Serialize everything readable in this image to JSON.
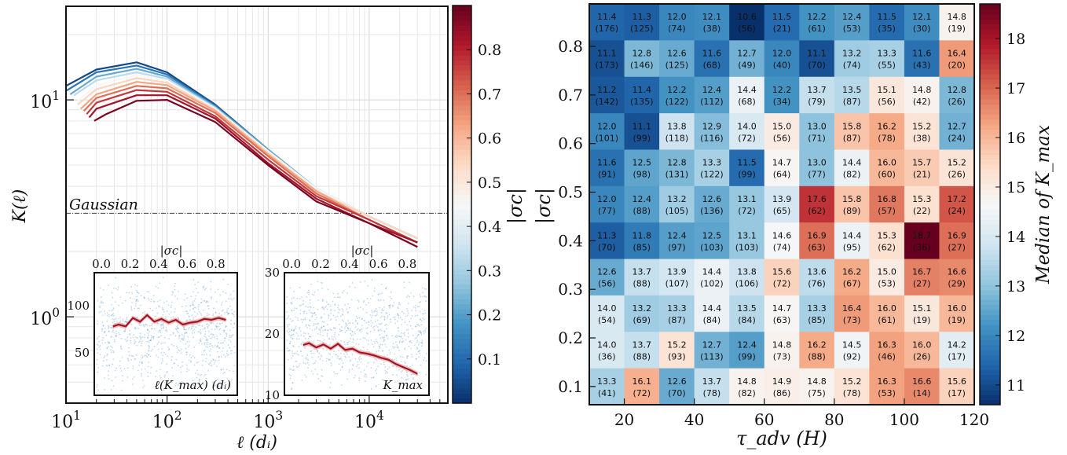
{
  "colors": {
    "cmap": [
      "#08306b",
      "#2166ac",
      "#4393c3",
      "#92c5de",
      "#d1e5f0",
      "#f7f7f7",
      "#fddbc7",
      "#f4a582",
      "#d6604d",
      "#b2182b",
      "#67001f"
    ]
  },
  "chart_data": [
    {
      "type": "line",
      "ylabel": "K(ℓ)",
      "xlabel": "ℓ (dᵢ)",
      "x_scale": "log",
      "y_scale": "log",
      "xlim": [
        10,
        60000
      ],
      "ylim": [
        0.4,
        27
      ],
      "x_ticks": [
        {
          "v": 10,
          "b": "10",
          "e": "1"
        },
        {
          "v": 100,
          "b": "10",
          "e": "2"
        },
        {
          "v": 1000,
          "b": "10",
          "e": "3"
        },
        {
          "v": 10000,
          "b": "10",
          "e": "4"
        }
      ],
      "y_ticks": [
        {
          "v": 1,
          "b": "10",
          "e": "0"
        },
        {
          "v": 10,
          "b": "10",
          "e": "1"
        }
      ],
      "reference_line": {
        "label": "Gaussian",
        "y": 3
      },
      "grid": true,
      "colorbar": {
        "label": "|σc|",
        "ticks": [
          "0.1",
          "0.2",
          "0.3",
          "0.4",
          "0.5",
          "0.6",
          "0.7",
          "0.8"
        ],
        "range": [
          0.0,
          0.9
        ]
      },
      "series": [
        {
          "sigma": 0.04,
          "x": [
            10,
            20,
            50,
            100,
            300,
            1000,
            3000,
            10000,
            30000
          ],
          "y": [
            11.6,
            13.8,
            14.9,
            13.4,
            9.5,
            5.9,
            3.9,
            2.9,
            2.3
          ]
        },
        {
          "sigma": 0.12,
          "x": [
            10,
            20,
            50,
            100,
            300,
            1000,
            3000,
            10000,
            30000
          ],
          "y": [
            11.0,
            13.4,
            14.4,
            13.1,
            9.4,
            5.9,
            3.9,
            2.9,
            2.3
          ]
        },
        {
          "sigma": 0.22,
          "x": [
            11,
            20,
            50,
            100,
            300,
            1000,
            3000,
            10000,
            30000
          ],
          "y": [
            10.6,
            12.8,
            13.9,
            12.8,
            9.3,
            5.9,
            3.9,
            2.9,
            2.3
          ]
        },
        {
          "sigma": 0.33,
          "x": [
            12,
            20,
            50,
            100,
            300,
            1000,
            3000,
            10000,
            30000
          ],
          "y": [
            10.5,
            12.3,
            13.4,
            12.5,
            9.2,
            5.8,
            3.9,
            2.9,
            2.3
          ]
        },
        {
          "sigma": 0.45,
          "x": [
            13,
            20,
            50,
            100,
            300,
            1000,
            3000,
            10000,
            30000
          ],
          "y": [
            9.9,
            11.7,
            13.0,
            12.3,
            9.1,
            5.8,
            3.9,
            2.9,
            2.3
          ]
        },
        {
          "sigma": 0.55,
          "x": [
            13,
            20,
            50,
            100,
            300,
            1000,
            3000,
            10000,
            30000
          ],
          "y": [
            9.5,
            11.2,
            12.6,
            12.0,
            9.0,
            5.7,
            3.8,
            2.9,
            2.3
          ]
        },
        {
          "sigma": 0.63,
          "x": [
            14,
            20,
            50,
            100,
            300,
            1000,
            3000,
            10000,
            30000
          ],
          "y": [
            9.1,
            10.6,
            12.1,
            11.7,
            8.9,
            5.6,
            3.8,
            2.8,
            2.2
          ]
        },
        {
          "sigma": 0.7,
          "x": [
            15,
            20,
            50,
            100,
            300,
            1000,
            3000,
            10000,
            30000
          ],
          "y": [
            8.9,
            10.2,
            11.6,
            11.3,
            8.7,
            5.5,
            3.7,
            2.8,
            2.2
          ]
        },
        {
          "sigma": 0.77,
          "x": [
            16,
            20,
            50,
            100,
            300,
            1000,
            3000,
            10000,
            30000
          ],
          "y": [
            8.6,
            9.7,
            11.1,
            10.9,
            8.4,
            5.3,
            3.6,
            2.8,
            2.2
          ]
        },
        {
          "sigma": 0.83,
          "x": [
            17,
            20,
            50,
            100,
            300,
            1000,
            3000,
            10000,
            30000
          ],
          "y": [
            8.3,
            9.1,
            10.5,
            10.5,
            8.2,
            5.1,
            3.5,
            2.7,
            2.2
          ]
        },
        {
          "sigma": 0.88,
          "x": [
            19,
            25,
            50,
            100,
            300,
            1000,
            3000,
            10000,
            30000
          ],
          "y": [
            8.0,
            8.6,
            9.9,
            10.0,
            7.9,
            5.0,
            3.4,
            2.7,
            2.1
          ]
        }
      ],
      "insets": [
        {
          "xlabel": "|σc|",
          "xlim": [
            -0.05,
            0.95
          ],
          "x_ticks": [
            "0.0",
            "0.2",
            "0.4",
            "0.6",
            "0.8"
          ],
          "ylim": [
            5,
            135
          ],
          "y_ticks": [
            {
              "v": 50,
              "t": "50"
            },
            {
              "v": 100,
              "t": "100"
            }
          ],
          "annotation": "ℓ(K_max) (dᵢ)",
          "line": {
            "x": [
              0.08,
              0.12,
              0.17,
              0.22,
              0.27,
              0.32,
              0.37,
              0.42,
              0.47,
              0.52,
              0.57,
              0.62,
              0.67,
              0.72,
              0.77,
              0.82,
              0.87
            ],
            "y": [
              78,
              80,
              78,
              87,
              83,
              90,
              83,
              86,
              82,
              85,
              80,
              82,
              83,
              86,
              85,
              87,
              85
            ]
          }
        },
        {
          "xlabel": "|σc|",
          "xlim": [
            -0.05,
            0.95
          ],
          "x_ticks": [
            "0.0",
            "0.2",
            "0.4",
            "0.6",
            "0.8"
          ],
          "ylim": [
            10,
            30
          ],
          "y_ticks": [
            {
              "v": 10,
              "t": "10"
            },
            {
              "v": 20,
              "t": "20"
            },
            {
              "v": 30,
              "t": "30"
            }
          ],
          "annotation": "K_max",
          "line": {
            "x": [
              0.08,
              0.12,
              0.17,
              0.22,
              0.27,
              0.32,
              0.37,
              0.42,
              0.47,
              0.52,
              0.57,
              0.62,
              0.67,
              0.72,
              0.77,
              0.82,
              0.87
            ],
            "y": [
              18.2,
              18.5,
              17.8,
              18.3,
              17.6,
              18.4,
              17.4,
              17.6,
              17.0,
              16.8,
              16.5,
              16.1,
              15.8,
              15.1,
              14.6,
              14.1,
              13.5
            ]
          }
        }
      ]
    },
    {
      "type": "heatmap",
      "xlabel": "τ_adv (H)",
      "ylabel": "|σc|",
      "x": [
        15,
        25,
        35,
        45,
        55,
        65,
        75,
        85,
        95,
        105,
        115
      ],
      "x_ticks": [
        20,
        40,
        60,
        80,
        100,
        120
      ],
      "y": [
        0.85,
        0.775,
        0.7,
        0.625,
        0.55,
        0.475,
        0.4,
        0.325,
        0.25,
        0.175,
        0.1
      ],
      "y_ticks": [
        "0.8",
        "0.7",
        "0.6",
        "0.5",
        "0.4",
        "0.3",
        "0.2",
        "0.1"
      ],
      "colorbar": {
        "label": "Median of K_max",
        "ticks": [
          11,
          12,
          13,
          14,
          15,
          16,
          17,
          18
        ],
        "range": [
          10.6,
          18.7
        ]
      },
      "values": [
        [
          11.4,
          11.3,
          12.0,
          12.1,
          10.6,
          11.5,
          12.2,
          12.4,
          11.5,
          12.1,
          14.8
        ],
        [
          11.1,
          12.8,
          12.6,
          11.6,
          12.7,
          12.0,
          11.1,
          13.2,
          13.3,
          11.6,
          16.4
        ],
        [
          11.2,
          11.4,
          12.2,
          12.4,
          14.4,
          12.2,
          13.7,
          13.5,
          15.1,
          14.8,
          12.8
        ],
        [
          12.0,
          11.1,
          13.8,
          12.9,
          14.0,
          15.0,
          13.0,
          15.8,
          16.2,
          15.2,
          12.7
        ],
        [
          11.6,
          12.5,
          12.8,
          13.3,
          11.5,
          14.7,
          13.0,
          14.4,
          16.0,
          15.7,
          15.2
        ],
        [
          12.0,
          12.4,
          13.2,
          12.6,
          13.1,
          13.9,
          17.6,
          15.8,
          16.8,
          15.3,
          17.2
        ],
        [
          11.3,
          11.8,
          12.4,
          12.5,
          13.1,
          14.6,
          16.9,
          14.4,
          15.3,
          18.7,
          16.9
        ],
        [
          12.6,
          13.7,
          13.9,
          14.4,
          13.8,
          15.6,
          13.6,
          16.2,
          15.0,
          16.7,
          16.6
        ],
        [
          14.0,
          13.2,
          13.3,
          14.4,
          13.5,
          14.7,
          13.3,
          16.4,
          16.0,
          15.1,
          16.0
        ],
        [
          14.0,
          13.7,
          15.2,
          12.7,
          12.4,
          14.8,
          16.2,
          14.5,
          16.3,
          16.0,
          14.2
        ],
        [
          13.3,
          16.1,
          12.6,
          13.7,
          14.8,
          14.9,
          14.8,
          15.2,
          16.3,
          16.6,
          15.6
        ]
      ],
      "counts": [
        [
          176,
          125,
          74,
          38,
          56,
          21,
          61,
          53,
          35,
          30,
          19
        ],
        [
          173,
          146,
          125,
          68,
          49,
          40,
          70,
          74,
          55,
          43,
          20
        ],
        [
          142,
          135,
          122,
          112,
          68,
          34,
          79,
          87,
          56,
          42,
          26
        ],
        [
          101,
          99,
          118,
          116,
          72,
          56,
          71,
          87,
          78,
          38,
          24
        ],
        [
          91,
          98,
          131,
          122,
          99,
          64,
          77,
          82,
          60,
          21,
          26
        ],
        [
          77,
          88,
          105,
          136,
          72,
          65,
          62,
          89,
          57,
          22,
          24
        ],
        [
          70,
          85,
          97,
          103,
          103,
          74,
          63,
          95,
          62,
          36,
          27
        ],
        [
          56,
          88,
          107,
          102,
          106,
          72,
          76,
          67,
          53,
          27,
          29
        ],
        [
          54,
          69,
          87,
          84,
          84,
          63,
          85,
          73,
          61,
          19,
          19
        ],
        [
          36,
          88,
          93,
          113,
          99,
          73,
          88,
          92,
          46,
          26,
          17
        ],
        [
          41,
          72,
          70,
          78,
          82,
          86,
          75,
          78,
          53,
          14,
          17
        ]
      ]
    }
  ]
}
